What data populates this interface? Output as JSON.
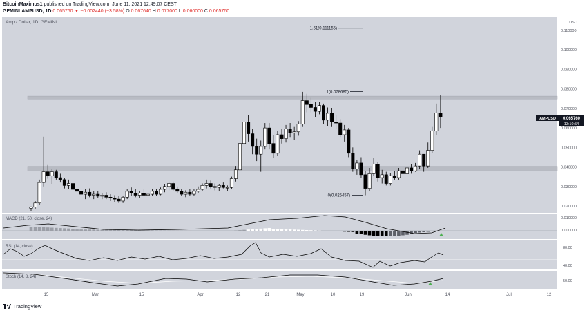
{
  "header": {
    "author": "BitcoinMaximus1",
    "published_text": "published on TradingView.com, June 11, 2021 12:49:07 CEST",
    "symbol": "GEMINI:AMPUSD, 1D",
    "price": "0.065760",
    "change": "−0.002440 (−3.58%)",
    "open_label": "O:",
    "open": "0.067640",
    "high_label": "H:",
    "high": "0.077000",
    "low_label": "L:",
    "low": "0.060000",
    "close_label": "C:",
    "close": "0.065760"
  },
  "pane_label": "Amp / Dollar, 1D, GEMINI",
  "price_tag": {
    "symbol": "AMPUSD",
    "price": "0.065760",
    "countdown": "13:10:54"
  },
  "indicators": {
    "macd": "MACD (21, 50, close, 24)",
    "rsi": "RSI (14, close)",
    "stoch": "Stoch (14, 8, 24)"
  },
  "footer": {
    "brand": "TradingView"
  },
  "colors": {
    "pane_bg": "#d1d4dc",
    "up": "#ffffff",
    "down": "#000000",
    "line": "#131722",
    "axis_text": "#50535e",
    "box": "#b8bbc3",
    "signal": "#4caf50"
  },
  "chart_data": {
    "type": "candlestick",
    "title": "Amp / Dollar, 1D, GEMINI",
    "price_unit": "USD",
    "y_ticks": [
      "0.110000",
      "0.100000",
      "0.090000",
      "0.080000",
      "0.070000",
      "0.060000",
      "0.050000",
      "0.040000",
      "0.030000",
      "0.020000"
    ],
    "x_ticks": [
      "15",
      "Mar",
      "15",
      "Apr",
      "12",
      "21",
      "May",
      "10",
      "19",
      "Jun",
      "14",
      "Jul",
      "12"
    ],
    "fib_levels": [
      {
        "label": "1.61(0.111155)",
        "value": 0.111155
      },
      {
        "label": "1(0.078685)",
        "value": 0.078685
      },
      {
        "label": "0(0.025457)",
        "value": 0.025457
      }
    ],
    "zones": [
      {
        "low": 0.0745,
        "high": 0.0763
      },
      {
        "low": 0.038,
        "high": 0.0403
      }
    ],
    "candles": [
      [
        0.0188,
        0.0198,
        0.0175,
        0.0195
      ],
      [
        0.0195,
        0.0225,
        0.0185,
        0.0215
      ],
      [
        0.0215,
        0.0335,
        0.0205,
        0.032
      ],
      [
        0.032,
        0.0555,
        0.03,
        0.0375
      ],
      [
        0.0375,
        0.041,
        0.034,
        0.0355
      ],
      [
        0.0355,
        0.039,
        0.031,
        0.0375
      ],
      [
        0.0375,
        0.0385,
        0.0335,
        0.0345
      ],
      [
        0.0345,
        0.0365,
        0.032,
        0.0335
      ],
      [
        0.0335,
        0.0345,
        0.029,
        0.0305
      ],
      [
        0.0305,
        0.0335,
        0.0285,
        0.0315
      ],
      [
        0.0315,
        0.0325,
        0.0275,
        0.0285
      ],
      [
        0.0285,
        0.0305,
        0.026,
        0.0275
      ],
      [
        0.0275,
        0.029,
        0.0245,
        0.026
      ],
      [
        0.026,
        0.0285,
        0.0235,
        0.027
      ],
      [
        0.027,
        0.029,
        0.0245,
        0.0255
      ],
      [
        0.0255,
        0.0275,
        0.0235,
        0.026
      ],
      [
        0.026,
        0.0275,
        0.024,
        0.025
      ],
      [
        0.025,
        0.0265,
        0.0235,
        0.0255
      ],
      [
        0.0255,
        0.027,
        0.0235,
        0.0245
      ],
      [
        0.0245,
        0.026,
        0.0225,
        0.024
      ],
      [
        0.024,
        0.0255,
        0.022,
        0.0235
      ],
      [
        0.0235,
        0.025,
        0.0215,
        0.0225
      ],
      [
        0.0225,
        0.025,
        0.0215,
        0.0245
      ],
      [
        0.0245,
        0.0285,
        0.0235,
        0.0275
      ],
      [
        0.0275,
        0.0295,
        0.025,
        0.0265
      ],
      [
        0.0265,
        0.0285,
        0.0245,
        0.0255
      ],
      [
        0.0255,
        0.0275,
        0.024,
        0.0265
      ],
      [
        0.0265,
        0.0285,
        0.025,
        0.0255
      ],
      [
        0.0255,
        0.027,
        0.024,
        0.026
      ],
      [
        0.026,
        0.0285,
        0.025,
        0.0275
      ],
      [
        0.0275,
        0.0285,
        0.025,
        0.026
      ],
      [
        0.026,
        0.0295,
        0.0255,
        0.0285
      ],
      [
        0.0285,
        0.031,
        0.027,
        0.03
      ],
      [
        0.03,
        0.0325,
        0.028,
        0.0315
      ],
      [
        0.0315,
        0.0325,
        0.0275,
        0.0285
      ],
      [
        0.0285,
        0.03,
        0.0265,
        0.0275
      ],
      [
        0.0275,
        0.0285,
        0.025,
        0.026
      ],
      [
        0.026,
        0.028,
        0.0245,
        0.027
      ],
      [
        0.027,
        0.0285,
        0.025,
        0.026
      ],
      [
        0.026,
        0.0285,
        0.025,
        0.0275
      ],
      [
        0.0275,
        0.03,
        0.0265,
        0.0285
      ],
      [
        0.0285,
        0.0315,
        0.0275,
        0.0305
      ],
      [
        0.0305,
        0.0335,
        0.029,
        0.0315
      ],
      [
        0.0315,
        0.033,
        0.029,
        0.03
      ],
      [
        0.03,
        0.0315,
        0.028,
        0.0295
      ],
      [
        0.0295,
        0.031,
        0.0275,
        0.0305
      ],
      [
        0.0305,
        0.032,
        0.029,
        0.0295
      ],
      [
        0.0295,
        0.0305,
        0.0275,
        0.0295
      ],
      [
        0.0295,
        0.035,
        0.0285,
        0.034
      ],
      [
        0.034,
        0.0405,
        0.0325,
        0.0385
      ],
      [
        0.0385,
        0.056,
        0.037,
        0.052
      ],
      [
        0.052,
        0.069,
        0.048,
        0.063
      ],
      [
        0.063,
        0.0665,
        0.053,
        0.057
      ],
      [
        0.057,
        0.0595,
        0.0465,
        0.0505
      ],
      [
        0.0505,
        0.0545,
        0.043,
        0.0465
      ],
      [
        0.0465,
        0.0535,
        0.0375,
        0.0505
      ],
      [
        0.0505,
        0.0625,
        0.049,
        0.06
      ],
      [
        0.06,
        0.0625,
        0.049,
        0.052
      ],
      [
        0.052,
        0.0565,
        0.0445,
        0.047
      ],
      [
        0.047,
        0.0585,
        0.0455,
        0.0565
      ],
      [
        0.0565,
        0.0595,
        0.052,
        0.0545
      ],
      [
        0.0545,
        0.0615,
        0.0525,
        0.0595
      ],
      [
        0.0595,
        0.0625,
        0.055,
        0.0575
      ],
      [
        0.0575,
        0.0605,
        0.054,
        0.058
      ],
      [
        0.058,
        0.0635,
        0.056,
        0.062
      ],
      [
        0.062,
        0.0785,
        0.0605,
        0.074
      ],
      [
        0.074,
        0.0775,
        0.068,
        0.072
      ],
      [
        0.072,
        0.0755,
        0.068,
        0.0705
      ],
      [
        0.0705,
        0.0735,
        0.0655,
        0.0685
      ],
      [
        0.0685,
        0.0735,
        0.067,
        0.0715
      ],
      [
        0.0715,
        0.0725,
        0.062,
        0.064
      ],
      [
        0.064,
        0.0705,
        0.061,
        0.0675
      ],
      [
        0.0675,
        0.07,
        0.0605,
        0.063
      ],
      [
        0.063,
        0.0665,
        0.0595,
        0.0625
      ],
      [
        0.0625,
        0.0645,
        0.055,
        0.0565
      ],
      [
        0.0565,
        0.0615,
        0.053,
        0.059
      ],
      [
        0.059,
        0.06,
        0.045,
        0.047
      ],
      [
        0.047,
        0.05,
        0.0375,
        0.039
      ],
      [
        0.039,
        0.0435,
        0.036,
        0.042
      ],
      [
        0.042,
        0.045,
        0.0345,
        0.036
      ],
      [
        0.036,
        0.038,
        0.0255,
        0.029
      ],
      [
        0.029,
        0.0395,
        0.0275,
        0.0365
      ],
      [
        0.0365,
        0.0445,
        0.0355,
        0.0415
      ],
      [
        0.0415,
        0.0425,
        0.0325,
        0.0345
      ],
      [
        0.0345,
        0.0385,
        0.0315,
        0.036
      ],
      [
        0.036,
        0.0375,
        0.0305,
        0.0315
      ],
      [
        0.0315,
        0.037,
        0.0305,
        0.0355
      ],
      [
        0.0355,
        0.038,
        0.0335,
        0.0345
      ],
      [
        0.0345,
        0.0395,
        0.0335,
        0.038
      ],
      [
        0.038,
        0.0405,
        0.035,
        0.0365
      ],
      [
        0.0365,
        0.041,
        0.0355,
        0.0395
      ],
      [
        0.0395,
        0.0415,
        0.0365,
        0.038
      ],
      [
        0.038,
        0.042,
        0.0375,
        0.0405
      ],
      [
        0.0405,
        0.0485,
        0.039,
        0.0465
      ],
      [
        0.0465,
        0.0465,
        0.0375,
        0.0405
      ],
      [
        0.0405,
        0.0525,
        0.0395,
        0.0485
      ],
      [
        0.0485,
        0.0605,
        0.047,
        0.0585
      ],
      [
        0.0585,
        0.0725,
        0.0565,
        0.0676
      ],
      [
        0.06764,
        0.077,
        0.06,
        0.06576
      ]
    ]
  }
}
